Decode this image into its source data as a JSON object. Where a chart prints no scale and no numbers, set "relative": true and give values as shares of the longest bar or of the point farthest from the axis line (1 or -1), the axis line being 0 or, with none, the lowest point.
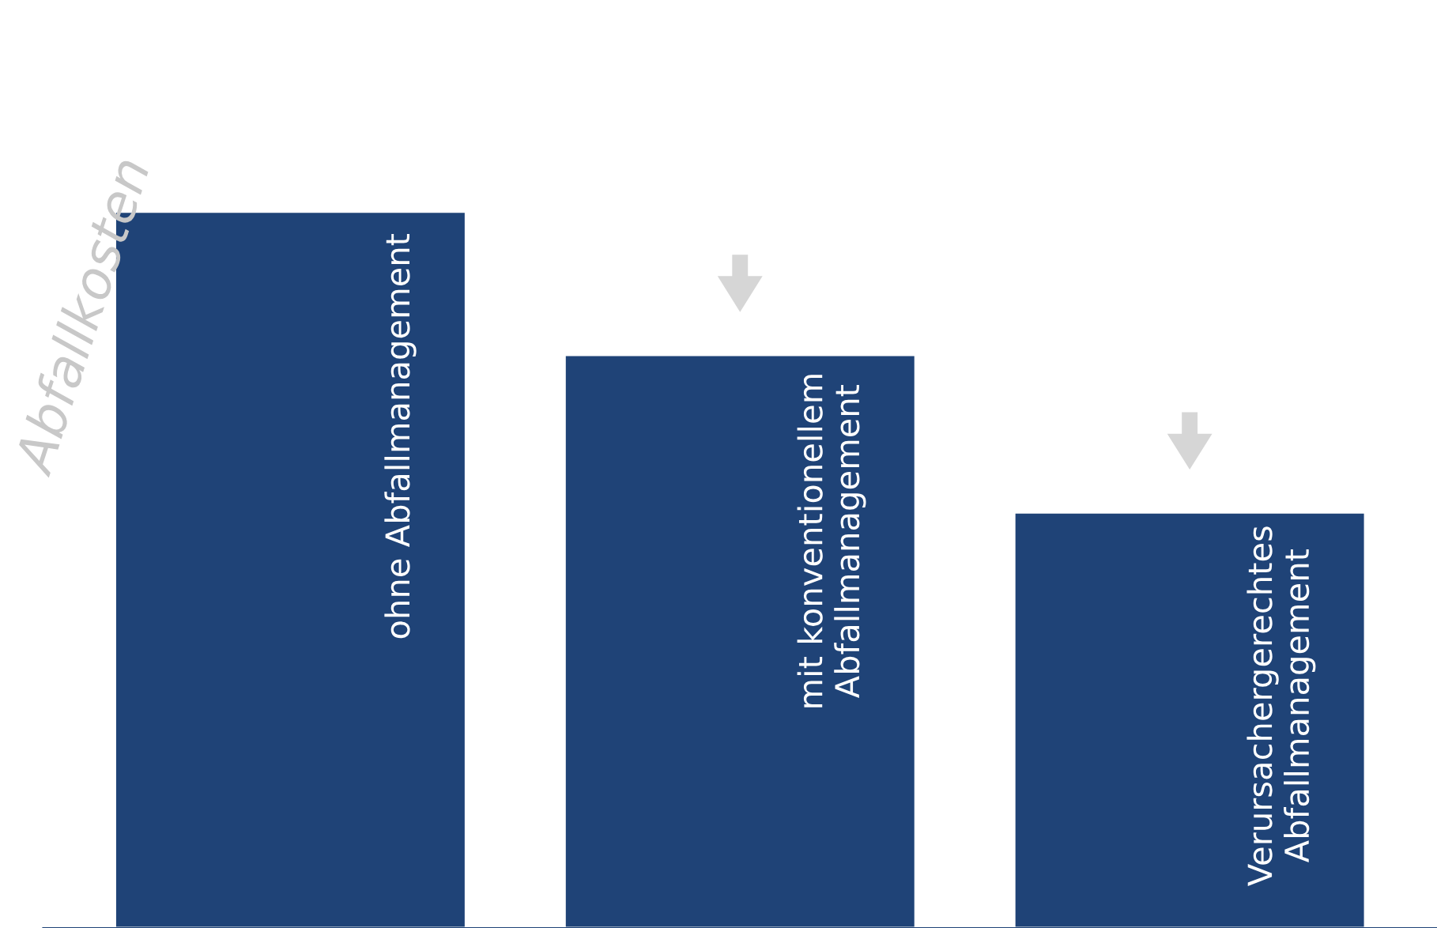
{
  "chart_data": {
    "type": "bar",
    "relative": true,
    "ylabel": "Abfallkosten",
    "categories": [
      "ohne Abfallmanagement",
      "mit konventionellem\nAbfallmanagement",
      "Verursachergerechtes\nAbfallmanagement"
    ],
    "values": [
      1,
      0.8,
      0.58
    ],
    "color": "#1f4377"
  }
}
